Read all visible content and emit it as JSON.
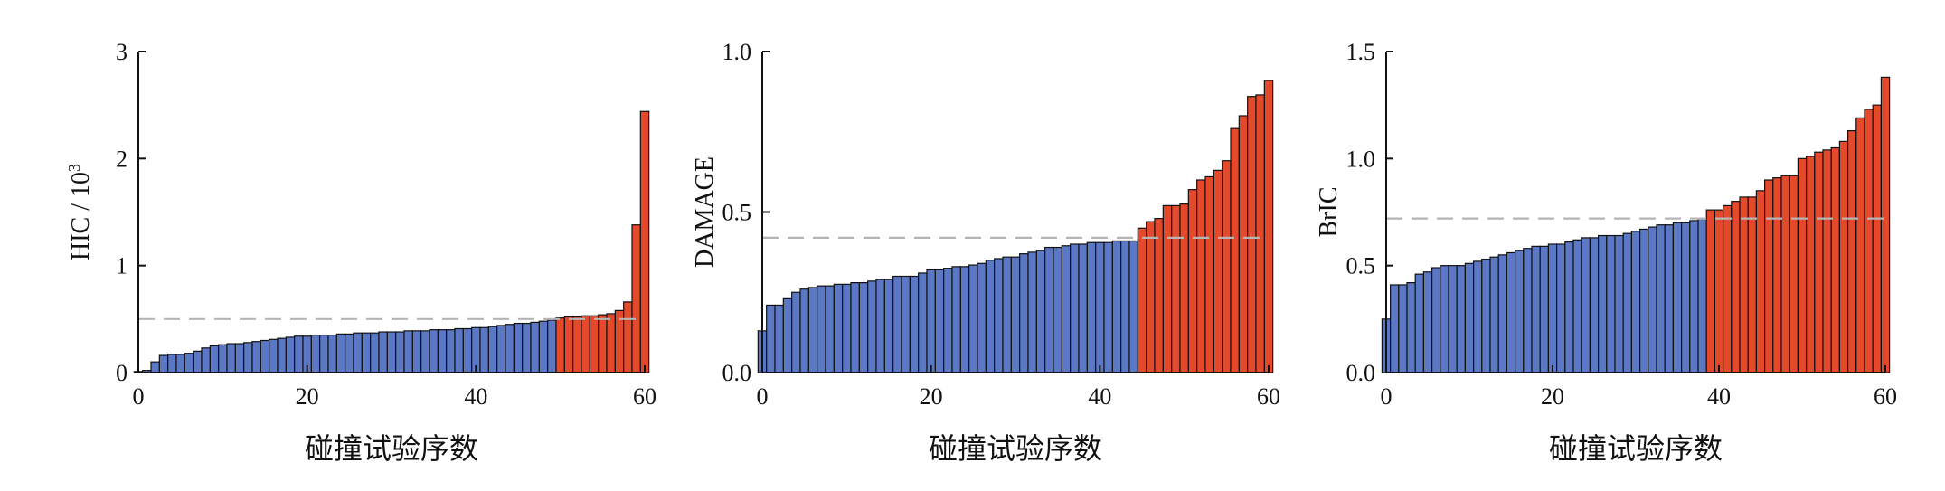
{
  "colors": {
    "below": "#5b78c4",
    "above": "#e5492c",
    "threshold_line": "#b5b5b5",
    "bar_edge": "#111111"
  },
  "chart_data": [
    {
      "type": "bar",
      "ylabel_main": "HIC / 10",
      "ylabel_sup": "3",
      "xlabel": "碰撞试验序数",
      "xlim": [
        0,
        60
      ],
      "ylim": [
        0,
        3
      ],
      "xticks": [
        "0",
        "20",
        "40",
        "60"
      ],
      "yticks": [
        "0",
        "1",
        "2",
        "3"
      ],
      "threshold": 0.5,
      "values": [
        0.01,
        0.02,
        0.1,
        0.16,
        0.17,
        0.17,
        0.18,
        0.2,
        0.23,
        0.25,
        0.26,
        0.27,
        0.27,
        0.28,
        0.29,
        0.3,
        0.31,
        0.32,
        0.33,
        0.34,
        0.34,
        0.35,
        0.35,
        0.35,
        0.36,
        0.36,
        0.37,
        0.37,
        0.37,
        0.38,
        0.38,
        0.38,
        0.39,
        0.39,
        0.39,
        0.4,
        0.4,
        0.4,
        0.41,
        0.41,
        0.42,
        0.42,
        0.43,
        0.44,
        0.45,
        0.46,
        0.46,
        0.47,
        0.48,
        0.49,
        0.51,
        0.52,
        0.52,
        0.53,
        0.53,
        0.54,
        0.55,
        0.58,
        0.66,
        1.38,
        2.44
      ]
    },
    {
      "type": "bar",
      "ylabel_main": "DAMAGE",
      "ylabel_sup": "",
      "xlabel": "碰撞试验序数",
      "xlim": [
        0,
        60
      ],
      "ylim": [
        0,
        1.0
      ],
      "xticks": [
        "0",
        "20",
        "40",
        "60"
      ],
      "yticks": [
        "0.0",
        "0.5",
        "1.0"
      ],
      "threshold": 0.42,
      "values": [
        0.13,
        0.21,
        0.21,
        0.23,
        0.25,
        0.26,
        0.265,
        0.27,
        0.27,
        0.275,
        0.275,
        0.28,
        0.28,
        0.285,
        0.29,
        0.29,
        0.3,
        0.3,
        0.3,
        0.31,
        0.32,
        0.32,
        0.325,
        0.33,
        0.33,
        0.335,
        0.34,
        0.35,
        0.355,
        0.36,
        0.36,
        0.37,
        0.375,
        0.38,
        0.39,
        0.39,
        0.395,
        0.4,
        0.4,
        0.405,
        0.405,
        0.405,
        0.41,
        0.41,
        0.41,
        0.45,
        0.47,
        0.48,
        0.52,
        0.52,
        0.525,
        0.57,
        0.6,
        0.61,
        0.63,
        0.66,
        0.76,
        0.8,
        0.86,
        0.865,
        0.91
      ]
    },
    {
      "type": "bar",
      "ylabel_main": "BrIC",
      "ylabel_sup": "",
      "xlabel": "碰撞试验序数",
      "xlim": [
        0,
        60
      ],
      "ylim": [
        0,
        1.5
      ],
      "xticks": [
        "0",
        "20",
        "40",
        "60"
      ],
      "yticks": [
        "0.0",
        "0.5",
        "1.0",
        "1.5"
      ],
      "threshold": 0.72,
      "values": [
        0.25,
        0.41,
        0.41,
        0.42,
        0.46,
        0.47,
        0.49,
        0.5,
        0.5,
        0.5,
        0.51,
        0.52,
        0.53,
        0.54,
        0.55,
        0.56,
        0.57,
        0.58,
        0.59,
        0.59,
        0.6,
        0.6,
        0.61,
        0.62,
        0.63,
        0.63,
        0.64,
        0.64,
        0.64,
        0.65,
        0.66,
        0.67,
        0.68,
        0.69,
        0.69,
        0.7,
        0.7,
        0.71,
        0.72,
        0.76,
        0.76,
        0.78,
        0.8,
        0.82,
        0.82,
        0.85,
        0.9,
        0.91,
        0.92,
        0.92,
        1.0,
        1.01,
        1.03,
        1.04,
        1.05,
        1.08,
        1.13,
        1.19,
        1.23,
        1.25,
        1.38
      ]
    }
  ]
}
